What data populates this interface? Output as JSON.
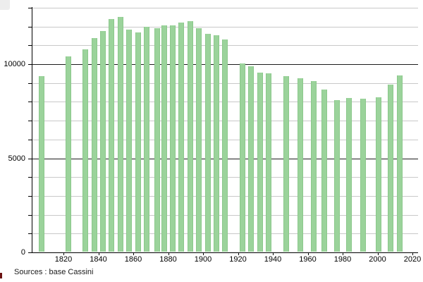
{
  "source_note": "Sources : base Cassini",
  "decorations": {
    "top_left_box_color": "#ededed",
    "bottom_left_mark_color": "#6b1212"
  },
  "chart_data": {
    "type": "bar",
    "title": "",
    "xlabel": "",
    "ylabel": "",
    "legend": "none",
    "grid": "on",
    "bar_color": "#9bd39b",
    "bar_border_color": "#8bc88b",
    "grid_minor_color": "#c9c9c9",
    "grid_major_color": "#1c1c1c",
    "axis_color": "#000000",
    "ylim": [
      0,
      13000
    ],
    "xlim": [
      1800,
      2023
    ],
    "y_gridline_step": 1000,
    "y_major_values": [
      5000,
      10000
    ],
    "y_tick_labels": [
      {
        "value": 0,
        "label": "0"
      },
      {
        "value": 5000,
        "label": "5000"
      },
      {
        "value": 10000,
        "label": "10000"
      }
    ],
    "x_tick_labels": [
      {
        "year": 1820,
        "label": "1820"
      },
      {
        "year": 1840,
        "label": "1840"
      },
      {
        "year": 1860,
        "label": "1860"
      },
      {
        "year": 1880,
        "label": "1880"
      },
      {
        "year": 1900,
        "label": "1900"
      },
      {
        "year": 1920,
        "label": "1920"
      },
      {
        "year": 1940,
        "label": "1940"
      },
      {
        "year": 1960,
        "label": "1960"
      },
      {
        "year": 1980,
        "label": "1980"
      },
      {
        "year": 2000,
        "label": "2000"
      },
      {
        "year": 2020,
        "label": "2020"
      }
    ],
    "points": [
      {
        "year": 1806,
        "value": 9350
      },
      {
        "year": 1821,
        "value": 10400
      },
      {
        "year": 1831,
        "value": 10800
      },
      {
        "year": 1836,
        "value": 11400
      },
      {
        "year": 1841,
        "value": 11750
      },
      {
        "year": 1846,
        "value": 12400
      },
      {
        "year": 1851,
        "value": 12500
      },
      {
        "year": 1856,
        "value": 11850
      },
      {
        "year": 1861,
        "value": 11700
      },
      {
        "year": 1866,
        "value": 12000
      },
      {
        "year": 1872,
        "value": 11900
      },
      {
        "year": 1876,
        "value": 12050
      },
      {
        "year": 1881,
        "value": 12050
      },
      {
        "year": 1886,
        "value": 12200
      },
      {
        "year": 1891,
        "value": 12300
      },
      {
        "year": 1896,
        "value": 11900
      },
      {
        "year": 1901,
        "value": 11600
      },
      {
        "year": 1906,
        "value": 11550
      },
      {
        "year": 1911,
        "value": 11300
      },
      {
        "year": 1921,
        "value": 10050
      },
      {
        "year": 1926,
        "value": 9900
      },
      {
        "year": 1931,
        "value": 9550
      },
      {
        "year": 1936,
        "value": 9500
      },
      {
        "year": 1946,
        "value": 9350
      },
      {
        "year": 1954,
        "value": 9250
      },
      {
        "year": 1962,
        "value": 9100
      },
      {
        "year": 1968,
        "value": 8650
      },
      {
        "year": 1975,
        "value": 8100
      },
      {
        "year": 1982,
        "value": 8200
      },
      {
        "year": 1990,
        "value": 8150
      },
      {
        "year": 1999,
        "value": 8250
      },
      {
        "year": 2006,
        "value": 8900
      },
      {
        "year": 2011,
        "value": 9400
      }
    ]
  }
}
